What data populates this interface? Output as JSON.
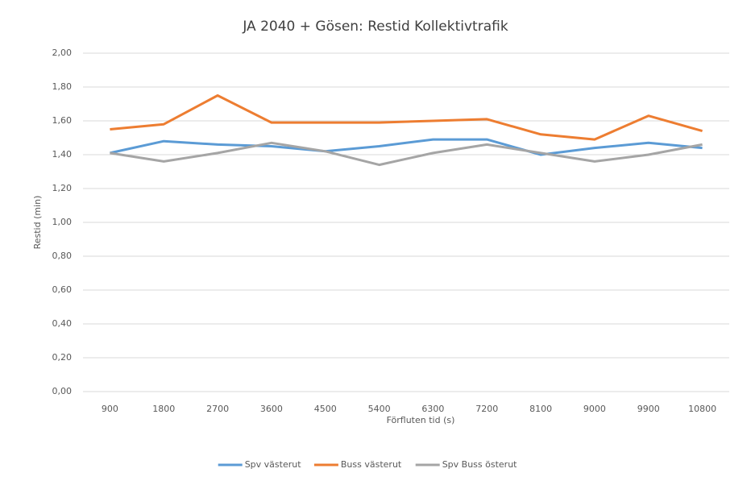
{
  "chart_data": {
    "type": "line",
    "title": "JA 2040 + Gösen: Restid Kollektivtrafik",
    "xlabel": "Förfluten tid (s)",
    "ylabel": "Restid (min)",
    "categories": [
      "900",
      "1800",
      "2700",
      "3600",
      "4500",
      "5400",
      "6300",
      "7200",
      "8100",
      "9000",
      "9900",
      "10800"
    ],
    "series": [
      {
        "name": "Spv västerut",
        "color": "#5b9bd5",
        "values": [
          1.41,
          1.48,
          1.46,
          1.45,
          1.42,
          1.45,
          1.49,
          1.49,
          1.4,
          1.44,
          1.47,
          1.44
        ]
      },
      {
        "name": "Buss västerut",
        "color": "#ed7d31",
        "values": [
          1.55,
          1.58,
          1.75,
          1.59,
          1.59,
          1.59,
          1.6,
          1.61,
          1.52,
          1.49,
          1.63,
          1.54
        ]
      },
      {
        "name": "Spv Buss österut",
        "color": "#a5a5a5",
        "values": [
          1.41,
          1.36,
          1.41,
          1.47,
          1.42,
          1.34,
          1.41,
          1.46,
          1.41,
          1.36,
          1.4,
          1.46
        ]
      }
    ],
    "ylim": [
      0,
      2
    ],
    "yticks": [
      {
        "value": 0,
        "label": "0,00"
      },
      {
        "value": 0.2,
        "label": "0,20"
      },
      {
        "value": 0.4,
        "label": "0,40"
      },
      {
        "value": 0.6,
        "label": "0,60"
      },
      {
        "value": 0.8,
        "label": "0,80"
      },
      {
        "value": 1,
        "label": "1,00"
      },
      {
        "value": 1.2,
        "label": "1,20"
      },
      {
        "value": 1.4,
        "label": "1,40"
      },
      {
        "value": 1.6,
        "label": "1,60"
      },
      {
        "value": 1.8,
        "label": "1,80"
      },
      {
        "value": 2,
        "label": "2,00"
      }
    ],
    "grid": true,
    "legend": "bottom"
  }
}
